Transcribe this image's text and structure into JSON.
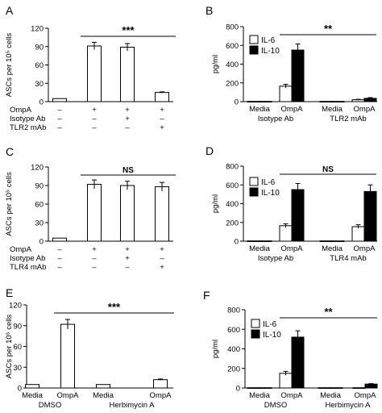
{
  "chart_data": [
    {
      "panel": "A",
      "type": "bar",
      "ylabel": "ASCs per 10⁵ cells",
      "ylim": [
        0,
        120
      ],
      "yticks": [
        "0",
        "30",
        "60",
        "90",
        "120"
      ],
      "categories": [
        "",
        "",
        "",
        ""
      ],
      "values": [
        5,
        91,
        89,
        15
      ],
      "errors": [
        0,
        6,
        6,
        1
      ],
      "fills": [
        "#ffffff",
        "#ffffff",
        "#ffffff",
        "#ffffff"
      ],
      "signif": "***",
      "signif_span": [
        1,
        3
      ],
      "condition_rows": [
        {
          "label": "OmpA",
          "marks": [
            "–",
            "+",
            "+",
            "+"
          ]
        },
        {
          "label": "Isotype Ab",
          "marks": [
            "–",
            "–",
            "+",
            "–"
          ]
        },
        {
          "label": "TLR2 mAb",
          "marks": [
            "–",
            "–",
            "–",
            "+"
          ]
        }
      ]
    },
    {
      "panel": "B",
      "type": "bar",
      "ylabel": "pg/ml",
      "ylim": [
        0,
        800
      ],
      "yticks": [
        "0",
        "200",
        "400",
        "600",
        "800"
      ],
      "categories": [
        "Media",
        "OmpA",
        "Media",
        "OmpA"
      ],
      "group_labels": [
        "Isotype Ab",
        "TLR2 mAb"
      ],
      "series": [
        {
          "name": "IL-6",
          "values": [
            3,
            165,
            3,
            20
          ],
          "errors": [
            0,
            20,
            0,
            5
          ],
          "color": "#ffffff"
        },
        {
          "name": "IL-10",
          "values": [
            3,
            550,
            3,
            35
          ],
          "errors": [
            0,
            65,
            0,
            8
          ],
          "color": "#000000"
        }
      ],
      "signif": "**",
      "signif_span": [
        1,
        3
      ]
    },
    {
      "panel": "C",
      "type": "bar",
      "ylabel": "ASCs per 10⁵ cells",
      "ylim": [
        0,
        120
      ],
      "yticks": [
        "0",
        "30",
        "60",
        "90",
        "120"
      ],
      "categories": [
        "",
        "",
        "",
        ""
      ],
      "values": [
        5,
        92,
        90,
        88
      ],
      "errors": [
        0,
        7,
        7,
        7
      ],
      "fills": [
        "#ffffff",
        "#ffffff",
        "#ffffff",
        "#ffffff"
      ],
      "signif": "NS",
      "signif_span": [
        1,
        3
      ],
      "condition_rows": [
        {
          "label": "OmpA",
          "marks": [
            "–",
            "+",
            "+",
            "+"
          ]
        },
        {
          "label": "Isotype Ab",
          "marks": [
            "–",
            "–",
            "+",
            "–"
          ]
        },
        {
          "label": "TLR4 mAb",
          "marks": [
            "–",
            "–",
            "–",
            "+"
          ]
        }
      ]
    },
    {
      "panel": "D",
      "type": "bar",
      "ylabel": "pg/ml",
      "ylim": [
        0,
        800
      ],
      "yticks": [
        "0",
        "200",
        "400",
        "600",
        "800"
      ],
      "categories": [
        "Media",
        "OmpA",
        "Media",
        "OmpA"
      ],
      "group_labels": [
        "Isotype Ab",
        "TLR4 mAb"
      ],
      "series": [
        {
          "name": "IL-6",
          "values": [
            3,
            165,
            3,
            155
          ],
          "errors": [
            0,
            20,
            0,
            20
          ],
          "color": "#ffffff"
        },
        {
          "name": "IL-10",
          "values": [
            3,
            550,
            3,
            530
          ],
          "errors": [
            0,
            65,
            0,
            70
          ],
          "color": "#000000"
        }
      ],
      "signif": "NS",
      "signif_span": [
        1,
        3
      ]
    },
    {
      "panel": "E",
      "type": "bar",
      "ylabel": "ASCs per 10⁵ cells",
      "ylim": [
        0,
        120
      ],
      "yticks": [
        "0",
        "30",
        "60",
        "90",
        "120"
      ],
      "categories": [
        "Media",
        "OmpA",
        "Media",
        "OmpA"
      ],
      "group_labels": [
        "DMSO",
        "Herbimycin A"
      ],
      "values": [
        5,
        92,
        5,
        12
      ],
      "errors": [
        0,
        7,
        0,
        1
      ],
      "fills": [
        "#ffffff",
        "#ffffff",
        "#ffffff",
        "#ffffff"
      ],
      "signif": "***",
      "signif_span": [
        1,
        3
      ]
    },
    {
      "panel": "F",
      "type": "bar",
      "ylabel": "pg/ml",
      "ylim": [
        0,
        800
      ],
      "yticks": [
        "0",
        "200",
        "400",
        "600",
        "800"
      ],
      "categories": [
        "Media",
        "OmpA",
        "Media",
        "OmpA"
      ],
      "group_labels": [
        "DMSO",
        "Herbimycin A"
      ],
      "series": [
        {
          "name": "IL-6",
          "values": [
            3,
            150,
            3,
            3
          ],
          "errors": [
            0,
            20,
            0,
            0
          ],
          "color": "#ffffff"
        },
        {
          "name": "IL-10",
          "values": [
            3,
            520,
            3,
            40
          ],
          "errors": [
            0,
            65,
            0,
            5
          ],
          "color": "#000000"
        }
      ],
      "signif": "**",
      "signif_span": [
        1,
        3
      ]
    }
  ]
}
